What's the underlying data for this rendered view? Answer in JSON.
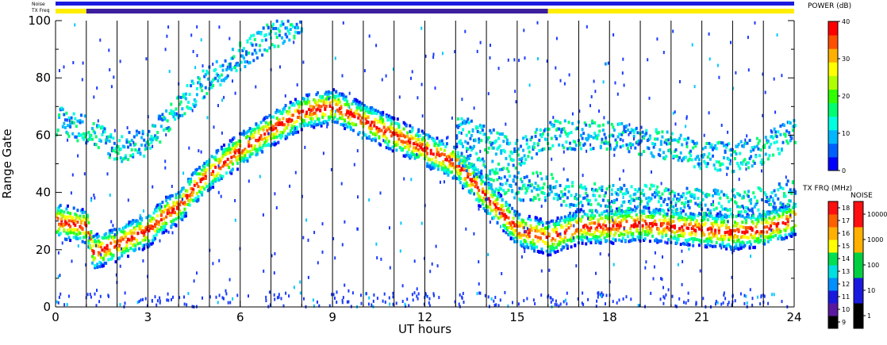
{
  "chart_data": {
    "type": "heatmap",
    "xlabel": "UT hours",
    "ylabel": "Range Gate",
    "xlim": [
      0,
      24
    ],
    "ylim": [
      0,
      100
    ],
    "x_ticks": [
      "0",
      "3",
      "6",
      "9",
      "12",
      "15",
      "18",
      "21",
      "24"
    ],
    "y_ticks": [
      "0",
      "20",
      "40",
      "60",
      "80",
      "100"
    ],
    "vertical_lines_hours": [
      1,
      2,
      3,
      4,
      5,
      6,
      7,
      8,
      9,
      10,
      11,
      12,
      13,
      14,
      15,
      16,
      17,
      18,
      19,
      20,
      21,
      22,
      23
    ],
    "strip_labels": {
      "noise": "Noise",
      "tx_freq": "TX Freq"
    },
    "tx_freq_strip": [
      {
        "start": 0,
        "end": 1,
        "color": "#ffee00"
      },
      {
        "start": 1,
        "end": 16,
        "color": "#3b1f9e"
      },
      {
        "start": 16,
        "end": 24,
        "color": "#ffee00"
      }
    ],
    "noise_strip_color": "#1a1adf",
    "echo_bands": [
      {
        "name": "main",
        "points": [
          [
            0,
            30
          ],
          [
            1,
            28
          ],
          [
            1.2,
            19
          ],
          [
            2,
            22
          ],
          [
            3,
            27
          ],
          [
            3.5,
            32
          ],
          [
            4,
            35
          ],
          [
            4.5,
            42
          ],
          [
            5,
            47
          ],
          [
            6,
            55
          ],
          [
            7,
            62
          ],
          [
            8,
            68
          ],
          [
            9,
            70
          ],
          [
            13,
            50
          ],
          [
            14,
            38
          ],
          [
            15,
            27
          ],
          [
            16,
            24
          ],
          [
            17,
            28
          ],
          [
            18,
            28
          ],
          [
            19,
            29
          ],
          [
            20,
            28
          ],
          [
            21,
            27
          ],
          [
            22,
            26
          ],
          [
            23,
            27
          ],
          [
            24,
            31
          ]
        ]
      },
      {
        "name": "upper",
        "points": [
          [
            0,
            65
          ],
          [
            1,
            62
          ],
          [
            2,
            55
          ],
          [
            3,
            58
          ],
          [
            4,
            70
          ],
          [
            5,
            80
          ],
          [
            6,
            88
          ],
          [
            7,
            95
          ],
          [
            8,
            100
          ]
        ]
      },
      {
        "name": "upper-late",
        "points": [
          [
            13,
            55
          ],
          [
            14,
            47
          ],
          [
            15,
            42
          ],
          [
            16,
            42
          ],
          [
            17,
            38
          ],
          [
            18,
            38
          ],
          [
            19,
            38
          ],
          [
            20,
            37
          ],
          [
            21,
            36
          ],
          [
            22,
            36
          ],
          [
            23,
            37
          ],
          [
            24,
            40
          ]
        ]
      },
      {
        "name": "high-late",
        "points": [
          [
            13,
            62
          ],
          [
            14,
            58
          ],
          [
            15,
            53
          ],
          [
            16,
            60
          ],
          [
            17,
            60
          ],
          [
            18,
            60
          ],
          [
            19,
            58
          ],
          [
            20,
            56
          ],
          [
            21,
            53
          ],
          [
            22,
            52
          ],
          [
            23,
            55
          ],
          [
            24,
            62
          ]
        ]
      }
    ],
    "power_colorbar": {
      "title": "POWER (dB)",
      "ticks": [
        "0",
        "10",
        "20",
        "30",
        "40"
      ],
      "range": [
        0,
        40
      ],
      "colors": [
        "#0000ff",
        "#0060ff",
        "#00b8ff",
        "#00ffe0",
        "#00ff70",
        "#30ff00",
        "#b0ff00",
        "#ffff00",
        "#ffb000",
        "#ff5000",
        "#ff0000"
      ]
    },
    "txfrq_colorbar": {
      "title": "TX FRQ (MHz)",
      "ticks": [
        "9",
        "10",
        "11",
        "12",
        "13",
        "14",
        "15",
        "16",
        "17",
        "18"
      ],
      "colors": [
        "#000000",
        "#5a1aa0",
        "#1a1adf",
        "#0090ff",
        "#00e0e0",
        "#00e050",
        "#ffff00",
        "#ffb000",
        "#ff6000",
        "#ff1010"
      ]
    },
    "noise_colorbar": {
      "title": "NOISE",
      "ticks": [
        "1",
        "10",
        "100",
        "1000",
        "10000"
      ],
      "colors": [
        "#000000",
        "#1a1adf",
        "#00d040",
        "#ffb000",
        "#ff1010"
      ]
    }
  }
}
